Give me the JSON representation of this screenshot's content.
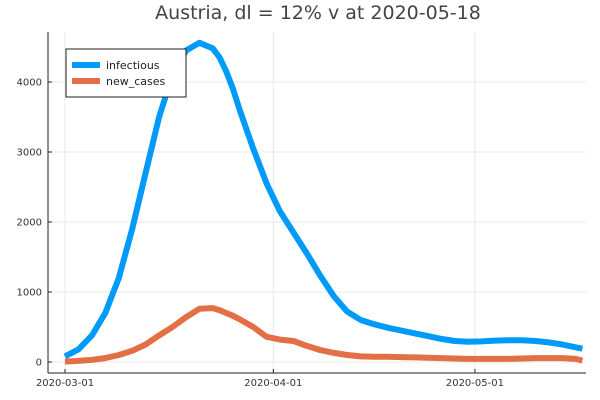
{
  "chart_data": {
    "type": "line",
    "title": "Austria,  dl = 12% v at 2020-05-18",
    "xlabel": "",
    "ylabel": "",
    "x_tick_labels": [
      "2020-03-01",
      "2020-04-01",
      "2020-05-01"
    ],
    "x_tick_days": [
      0,
      31,
      61
    ],
    "xlim": [
      0,
      78
    ],
    "y_ticks": [
      0,
      1000,
      2000,
      3000,
      4000
    ],
    "ylim": [
      -120,
      4750
    ],
    "grid": true,
    "legend": "top-left",
    "series": [
      {
        "name": "infectious",
        "color": "#009af9",
        "x": [
          0,
          2,
          4,
          6,
          8,
          10,
          12,
          14,
          16,
          18,
          20,
          22,
          23,
          24,
          25,
          26,
          28,
          30,
          32,
          34,
          36,
          38,
          40,
          42,
          44,
          46,
          48,
          50,
          52,
          54,
          56,
          58,
          60,
          62,
          64,
          66,
          68,
          70,
          72,
          74,
          76,
          77
        ],
        "y": [
          80,
          180,
          380,
          700,
          1200,
          1900,
          2700,
          3500,
          4100,
          4450,
          4560,
          4480,
          4350,
          4150,
          3900,
          3600,
          3050,
          2550,
          2150,
          1850,
          1550,
          1230,
          940,
          720,
          600,
          540,
          490,
          450,
          410,
          370,
          330,
          300,
          290,
          295,
          305,
          310,
          310,
          300,
          280,
          250,
          210,
          190
        ]
      },
      {
        "name": "new_cases",
        "color": "#e26f46",
        "x": [
          0,
          2,
          4,
          6,
          8,
          10,
          12,
          14,
          16,
          18,
          20,
          22,
          23,
          24,
          25,
          26,
          28,
          30,
          32,
          34,
          36,
          38,
          40,
          42,
          44,
          46,
          48,
          50,
          52,
          54,
          56,
          58,
          60,
          62,
          64,
          66,
          68,
          70,
          72,
          74,
          76,
          77
        ],
        "y": [
          5,
          15,
          30,
          55,
          100,
          160,
          250,
          380,
          500,
          640,
          760,
          770,
          740,
          700,
          660,
          610,
          500,
          360,
          320,
          300,
          230,
          170,
          130,
          100,
          80,
          75,
          75,
          70,
          65,
          60,
          55,
          50,
          45,
          45,
          45,
          45,
          50,
          55,
          55,
          55,
          45,
          20
        ]
      }
    ]
  }
}
